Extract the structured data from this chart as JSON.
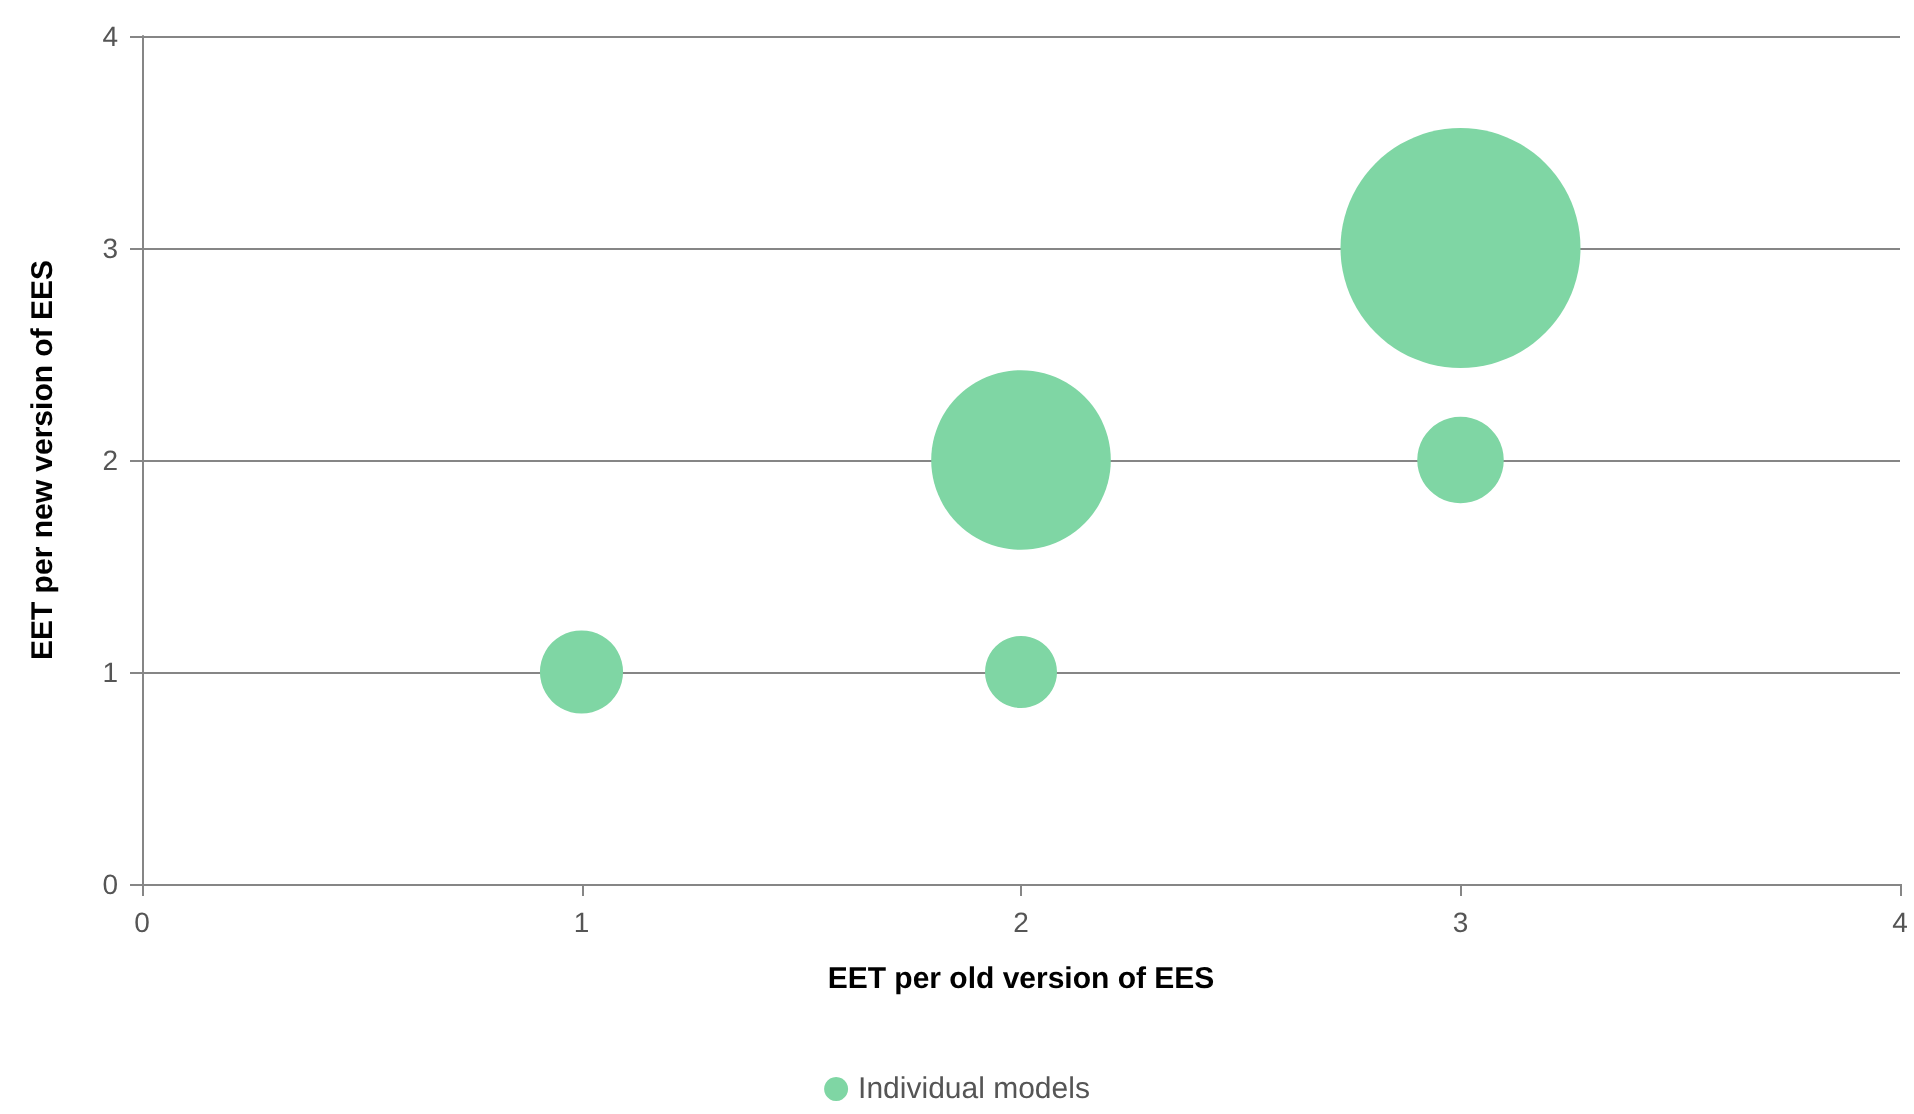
{
  "chart_data": {
    "type": "bubble",
    "xlabel": "EET per old version of EES",
    "ylabel": "EET per new version of EES",
    "x": [
      1,
      2,
      2,
      3,
      3
    ],
    "series": [
      {
        "name": "Individual models",
        "color": "#7fd6a4",
        "values": [
          1,
          1,
          2,
          2,
          3
        ],
        "sizes": [
          0.12,
          0.09,
          0.56,
          0.13,
          1
        ]
      }
    ],
    "xlim": [
      0,
      4
    ],
    "xticks": [
      0,
      1,
      2,
      3,
      4
    ],
    "ylim": [
      0,
      4
    ],
    "yticks": [
      0,
      1,
      2,
      3,
      4
    ],
    "grid": "y",
    "legend": "bottom"
  }
}
